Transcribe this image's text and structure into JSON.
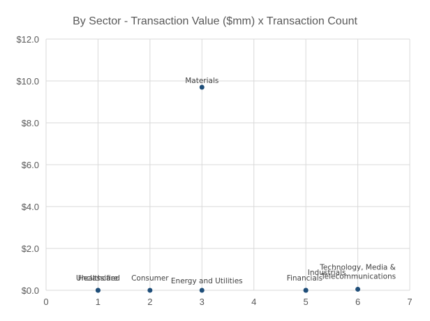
{
  "chart_data": {
    "type": "scatter",
    "title": "By Sector - Transaction Value ($mm) x Transaction Count",
    "xlabel": "",
    "ylabel": "",
    "xlim": [
      0,
      7
    ],
    "ylim": [
      0,
      12
    ],
    "x_ticks": [
      0,
      1,
      2,
      3,
      4,
      5,
      6,
      7
    ],
    "y_ticks": [
      0,
      2,
      4,
      6,
      8,
      10,
      12
    ],
    "y_tick_labels": [
      "$0.0",
      "$2.0",
      "$4.0",
      "$6.0",
      "$8.0",
      "$10.0",
      "$12.0"
    ],
    "grid": true,
    "marker_color": "#1f4e79",
    "grid_color": "#d9d9d9",
    "points": [
      {
        "label": "Healthcare",
        "x": 1,
        "y": 0.0
      },
      {
        "label": "Unclassified",
        "x": 1,
        "y": 0.0
      },
      {
        "label": "Consumer",
        "x": 2,
        "y": 0.0
      },
      {
        "label": "Materials",
        "x": 3,
        "y": 9.7
      },
      {
        "label": "Energy and Utilities",
        "x": 3,
        "y": 0.0
      },
      {
        "label": "Industrials",
        "x": 5,
        "y": 0.0
      },
      {
        "label": "Financials",
        "x": 5,
        "y": 0.0
      },
      {
        "label": "Technology, Media & Telecommunications",
        "x": 6,
        "y": 0.05
      }
    ]
  }
}
